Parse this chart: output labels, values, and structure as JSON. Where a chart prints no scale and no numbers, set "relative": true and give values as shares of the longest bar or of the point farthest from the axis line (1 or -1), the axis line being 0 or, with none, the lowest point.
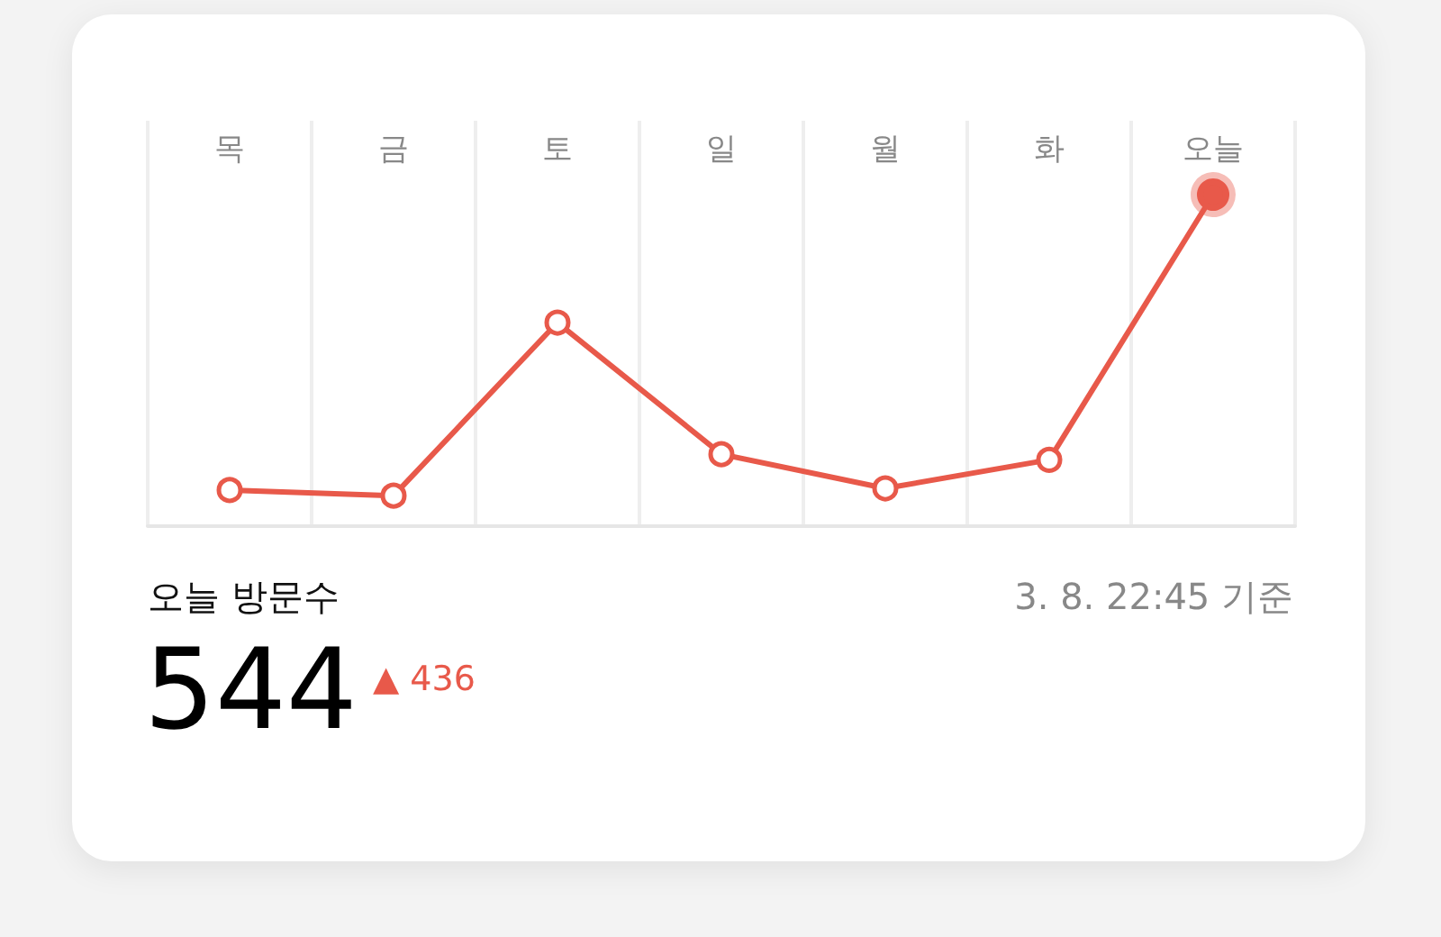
{
  "chart_data": {
    "type": "line",
    "title": "오늘 방문수",
    "categories": [
      "목",
      "금",
      "토",
      "일",
      "월",
      "화",
      "오늘"
    ],
    "series": [
      {
        "color": "#e8594a",
        "values": [
          0.109,
          0.092,
          0.614,
          0.217,
          0.114,
          0.2,
          1
        ]
      }
    ],
    "relative": true,
    "grid": "x",
    "marker": "circle",
    "line_style": "solid",
    "annotations": [
      "544",
      "▲ 436",
      "3. 8. 22:45 기준"
    ]
  }
}
